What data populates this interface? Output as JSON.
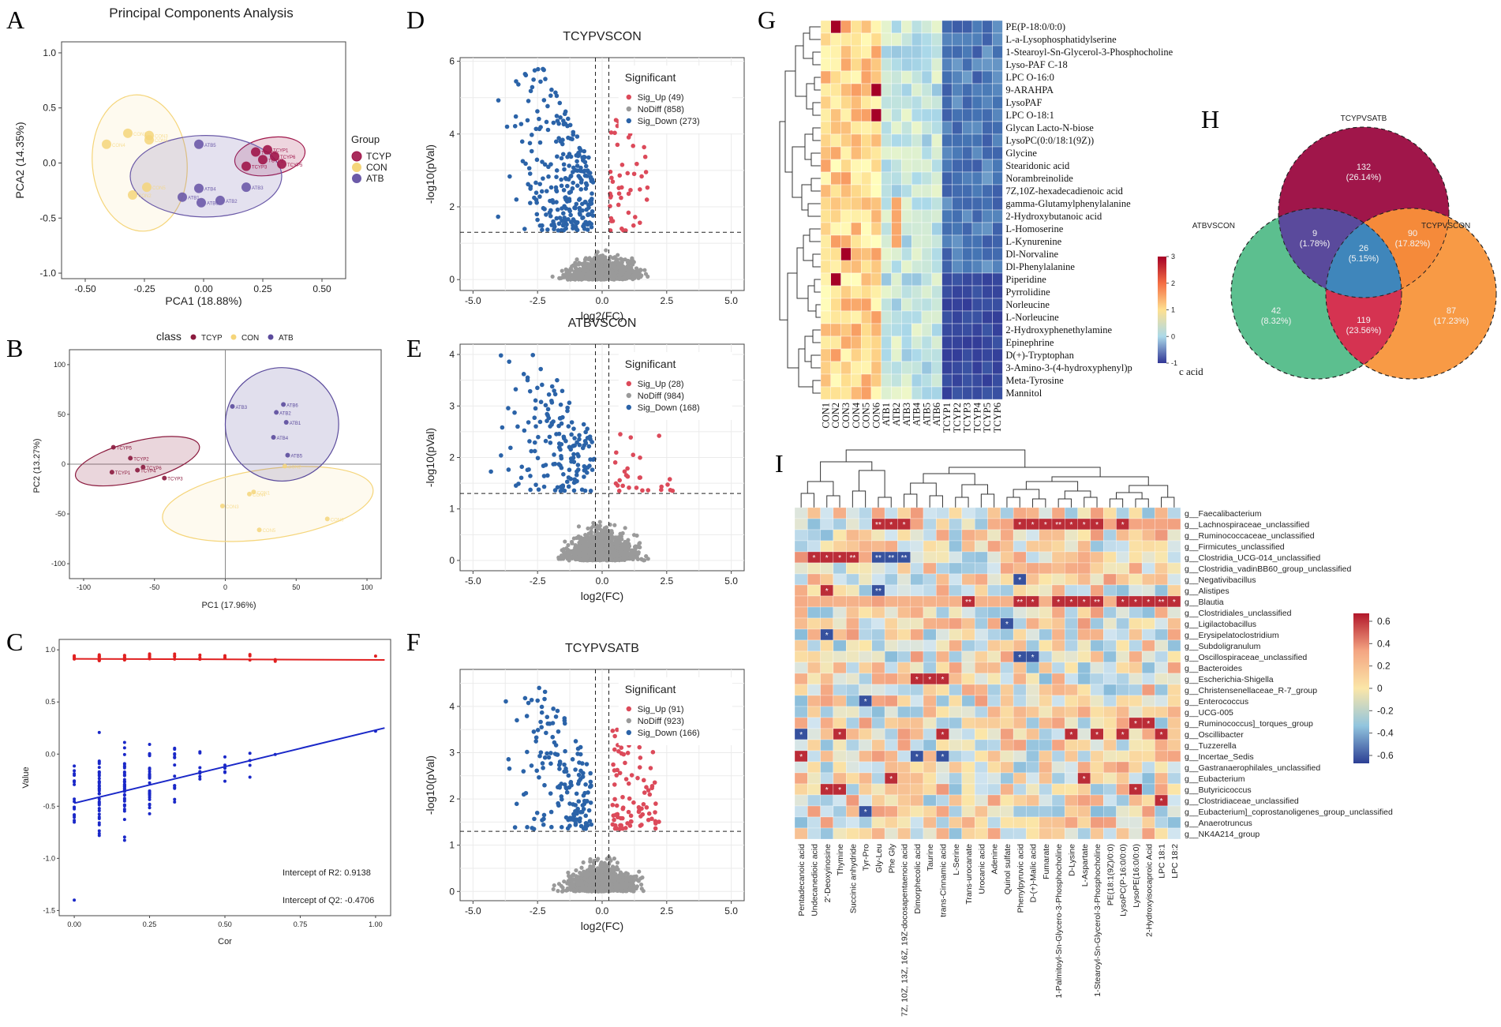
{
  "panels": {
    "A": "A",
    "B": "B",
    "C": "C",
    "D": "D",
    "E": "E",
    "F": "F",
    "G": "G",
    "H": "H",
    "I": "I"
  },
  "chart_data": [
    {
      "id": "A",
      "type": "scatter",
      "title": "Principal Components Analysis",
      "xlabel": "PCA1 (18.88%)",
      "ylabel": "PCA2 (14.35%)",
      "xlim": [
        -0.6,
        0.6
      ],
      "ylim": [
        -1.05,
        1.1
      ],
      "xticks": [
        "-0.50",
        "-0.25",
        "0.00",
        "0.25",
        "0.50"
      ],
      "yticks": [
        "-1.0",
        "-0.5",
        "0.0",
        "0.5",
        "1.0"
      ],
      "legend_title": "Group",
      "groups": [
        {
          "name": "TCYP",
          "color": "#a0164a",
          "ellipse": {
            "cx": 0.28,
            "cy": 0.06,
            "rx": 0.15,
            "ry": 0.17,
            "angle": -10
          },
          "points": [
            {
              "label": "TCYP1",
              "x": 0.27,
              "y": 0.12
            },
            {
              "label": "TCYP2",
              "x": 0.25,
              "y": 0.03
            },
            {
              "label": "TCYP3",
              "x": 0.18,
              "y": -0.03
            },
            {
              "label": "TCYP4",
              "x": 0.22,
              "y": 0.1
            },
            {
              "label": "TCYP5",
              "x": 0.33,
              "y": -0.01
            },
            {
              "label": "TCYP6",
              "x": 0.3,
              "y": 0.06
            }
          ]
        },
        {
          "name": "CON",
          "color": "#f5d57a",
          "ellipse": {
            "cx": -0.27,
            "cy": 0.0,
            "rx": 0.2,
            "ry": 0.62,
            "angle": -5
          },
          "points": [
            {
              "label": "CON1",
              "x": -0.32,
              "y": 0.27
            },
            {
              "label": "CON2",
              "x": -0.3,
              "y": -0.29
            },
            {
              "label": "CON3",
              "x": -0.23,
              "y": 0.25
            },
            {
              "label": "CON4",
              "x": -0.41,
              "y": 0.17
            },
            {
              "label": "CON5",
              "x": -0.24,
              "y": -0.22
            },
            {
              "label": "CON6",
              "x": -0.23,
              "y": 0.21
            }
          ]
        },
        {
          "name": "ATB",
          "color": "#6b5aa8",
          "ellipse": {
            "cx": 0.01,
            "cy": -0.12,
            "rx": 0.32,
            "ry": 0.37,
            "angle": 0
          },
          "points": [
            {
              "label": "ATB1",
              "x": -0.09,
              "y": -0.31
            },
            {
              "label": "ATB2",
              "x": 0.07,
              "y": -0.34
            },
            {
              "label": "ATB3",
              "x": 0.18,
              "y": -0.22
            },
            {
              "label": "ATB4",
              "x": -0.02,
              "y": -0.23
            },
            {
              "label": "ATB5",
              "x": -0.02,
              "y": 0.17
            },
            {
              "label": "ATB6",
              "x": -0.01,
              "y": -0.36
            }
          ]
        }
      ]
    },
    {
      "id": "B",
      "type": "scatter",
      "legend_title": "class",
      "legend": [
        "TCYP",
        "CON",
        "ATB"
      ],
      "xlabel": "PC1 (17.96%)",
      "ylabel": "PC2 (13.27%)",
      "xlim": [
        -110,
        110
      ],
      "ylim": [
        -115,
        115
      ],
      "xticks": [
        "-100",
        "-50",
        "0",
        "50",
        "100"
      ],
      "yticks": [
        "-100",
        "-50",
        "0",
        "50",
        "100"
      ],
      "groups": [
        {
          "name": "TCYP",
          "color": "#8b1a3e",
          "ellipse": {
            "cx": -62,
            "cy": 3,
            "rx": 45,
            "ry": 20,
            "angle": -14
          },
          "points": [
            {
              "label": "TCYP1",
              "x": -80,
              "y": -8
            },
            {
              "label": "TCYP2",
              "x": -67,
              "y": 6
            },
            {
              "label": "TCYP3",
              "x": -43,
              "y": -14
            },
            {
              "label": "TCYP4",
              "x": -62,
              "y": -6
            },
            {
              "label": "TCYP5",
              "x": -79,
              "y": 17
            },
            {
              "label": "TCYP6",
              "x": -58,
              "y": -3
            }
          ]
        },
        {
          "name": "CON",
          "color": "#f5d57a",
          "ellipse": {
            "cx": 30,
            "cy": -40,
            "rx": 75,
            "ry": 35,
            "angle": -8
          },
          "points": [
            {
              "label": "CON1",
              "x": 20,
              "y": -28
            },
            {
              "label": "CON2",
              "x": 42,
              "y": -2
            },
            {
              "label": "CON3",
              "x": -2,
              "y": -42
            },
            {
              "label": "CON4",
              "x": 17,
              "y": -30
            },
            {
              "label": "CON5",
              "x": 24,
              "y": -66
            },
            {
              "label": "CON6",
              "x": 72,
              "y": -55
            }
          ]
        },
        {
          "name": "ATB",
          "color": "#5b4b9c",
          "ellipse": {
            "cx": 40,
            "cy": 40,
            "rx": 40,
            "ry": 57,
            "angle": 30
          },
          "points": [
            {
              "label": "ATB1",
              "x": 43,
              "y": 42
            },
            {
              "label": "ATB2",
              "x": 36,
              "y": 52
            },
            {
              "label": "ATB3",
              "x": 5,
              "y": 58
            },
            {
              "label": "ATB4",
              "x": 34,
              "y": 27
            },
            {
              "label": "ATB5",
              "x": 44,
              "y": 9
            },
            {
              "label": "ATB6",
              "x": 41,
              "y": 60
            }
          ]
        }
      ]
    },
    {
      "id": "C",
      "type": "scatter",
      "xlabel": "Cor",
      "ylabel": "Value",
      "xlim": [
        -0.05,
        1.05
      ],
      "ylim": [
        -1.55,
        1.1
      ],
      "xticks": [
        "0.00",
        "0.25",
        "0.50",
        "0.75",
        "1.00"
      ],
      "yticks": [
        "-1.5",
        "-1.0",
        "-0.5",
        "0.0",
        "0.5",
        "1.0"
      ],
      "r2_line": {
        "color": "#e02020",
        "intercept": 0.9138,
        "slope": -0.01
      },
      "q2_line": {
        "color": "#1a28c8",
        "intercept": -0.4706,
        "slope": 0.7
      },
      "annotations": [
        "Intercept of R2: 0.9138",
        "Intercept of Q2: -0.4706"
      ],
      "x_columns": [
        0.0,
        0.083,
        0.167,
        0.25,
        0.333,
        0.417,
        0.5,
        0.583,
        0.667,
        1.0
      ]
    },
    {
      "id": "D",
      "type": "scatter",
      "title": "TCYPVSCON",
      "xlabel": "log2(FC)",
      "ylabel": "-log10(pVal)",
      "xlim": [
        -5.5,
        5.5
      ],
      "ylim": [
        -0.3,
        6.1
      ],
      "xticks": [
        "-5.0",
        "-2.5",
        "0.0",
        "2.5",
        "5.0"
      ],
      "xtick_values": [
        -5,
        -2.5,
        0,
        2.5,
        5
      ],
      "yticks": [
        "0",
        "2",
        "4",
        "6"
      ],
      "ytick_values": [
        0,
        2,
        4,
        6
      ],
      "legend_title": "Significant",
      "legend": [
        "Sig_Up (49)",
        "NoDiff (858)",
        "Sig_Down (273)"
      ],
      "counts": {
        "up": 49,
        "nodiff": 858,
        "down": 273
      },
      "down_extent": {
        "xmin": -4.2,
        "xmax": -0.3,
        "ymax": 5.8
      },
      "up_extent": {
        "xmin": 0.3,
        "xmax": 1.8,
        "ymax": 4.4
      },
      "threshold_y": 1.3,
      "threshold_x": [
        -0.26,
        0.26
      ]
    },
    {
      "id": "E",
      "type": "scatter",
      "title": "ATBVSCON",
      "xlabel": "log2(FC)",
      "ylabel": "-log10(pVal)",
      "xlim": [
        -5.5,
        5.5
      ],
      "ylim": [
        -0.2,
        4.2
      ],
      "xticks": [
        "-5.0",
        "-2.5",
        "0.0",
        "2.5",
        "5.0"
      ],
      "xtick_values": [
        -5,
        -2.5,
        0,
        2.5,
        5
      ],
      "yticks": [
        "0",
        "1",
        "2",
        "3",
        "4"
      ],
      "ytick_values": [
        0,
        1,
        2,
        3,
        4
      ],
      "legend_title": "Significant",
      "legend": [
        "Sig_Up (28)",
        "NoDiff (984)",
        "Sig_Down (168)"
      ],
      "counts": {
        "up": 28,
        "nodiff": 984,
        "down": 168
      },
      "down_extent": {
        "xmin": -4.5,
        "xmax": -0.3,
        "ymax": 4.0
      },
      "up_extent": {
        "xmin": 0.5,
        "xmax": 2.8,
        "ymax": 2.5
      },
      "threshold_y": 1.3,
      "threshold_x": [
        -0.26,
        0.26
      ]
    },
    {
      "id": "F",
      "type": "scatter",
      "title": "TCYPVSATB",
      "xlabel": "log2(FC)",
      "ylabel": "-log10(pVal)",
      "xlim": [
        -5.5,
        5.5
      ],
      "ylim": [
        -0.2,
        4.8
      ],
      "xticks": [
        "-5.0",
        "-2.5",
        "0.0",
        "2.5",
        "5.0"
      ],
      "xtick_values": [
        -5,
        -2.5,
        0,
        2.5,
        5
      ],
      "yticks": [
        "0",
        "1",
        "2",
        "3",
        "4"
      ],
      "ytick_values": [
        0,
        1,
        2,
        3,
        4
      ],
      "legend_title": "Significant",
      "legend": [
        "Sig_Up (91)",
        "NoDiff (923)",
        "Sig_Down (166)"
      ],
      "counts": {
        "up": 91,
        "nodiff": 923,
        "down": 166
      },
      "down_extent": {
        "xmin": -4.0,
        "xmax": -0.4,
        "ymax": 4.6
      },
      "up_extent": {
        "xmin": 0.4,
        "xmax": 2.2,
        "ymax": 3.5
      },
      "threshold_y": 1.3,
      "threshold_x": [
        -0.26,
        0.26
      ]
    },
    {
      "id": "G",
      "type": "heatmap",
      "columns": [
        "CON1",
        "CON2",
        "CON3",
        "CON4",
        "CON5",
        "CON6",
        "ATB1",
        "ATB2",
        "ATB3",
        "ATB4",
        "ATB5",
        "ATB6",
        "TCYP1",
        "TCYP2",
        "TCYP3",
        "TCYP4",
        "TCYP5",
        "TCYP6"
      ],
      "rows": [
        "PE(P-18:0/0:0)",
        "L-a-Lysophosphatidylserine",
        "1-Stearoyl-Sn-Glycerol-3-Phosphocholine",
        "Lyso-PAF C-18",
        "LPC O-16:0",
        "9-ARAHPA",
        "LysoPAF",
        "LPC O-18:1",
        "Glycan Lacto-N-biose",
        "LysoPC(0:0/18:1(9Z))",
        "Glycine",
        "Stearidonic acid",
        "Norambreinolide",
        "7Z,10Z-hexadecadienoic acid",
        "gamma-Glutamylphenylalanine",
        "2-Hydroxybutanoic acid",
        "L-Homoserine",
        "L-Kynurenine",
        "Dl-Norvaline",
        "Dl-Phenylalanine",
        "Piperidine",
        "Pyrrolidine",
        "Norleucine",
        "L-Norleucine",
        "2-Hydroxyphenethylamine",
        "Epinephrine",
        "D(+)-Tryptophan",
        "3-Amino-3-(4-hydroxyphenyl)p",
        "Meta-Tyrosine",
        "Mannitol"
      ],
      "row_label_suffix": "c acid",
      "scale": {
        "min": -1,
        "max": 3,
        "ticks": [
          "3",
          "2",
          "1",
          "0",
          "-1"
        ]
      }
    },
    {
      "id": "H",
      "type": "venn",
      "sets": [
        "TCYPVSATB",
        "ATBVSCON",
        "TCYPVSCON"
      ],
      "colors": {
        "TCYPVSATB": "#a0164a",
        "ATBVSCON": "#5cbf8f",
        "TCYPVSCON": "#f89a45"
      },
      "regions": [
        {
          "sets": [
            "TCYPVSATB"
          ],
          "count": "132",
          "pct": "(26.14%)"
        },
        {
          "sets": [
            "ATBVSCON"
          ],
          "count": "42",
          "pct": "(8.32%)"
        },
        {
          "sets": [
            "TCYPVSCON"
          ],
          "count": "87",
          "pct": "(17.23%)"
        },
        {
          "sets": [
            "TCYPVSATB",
            "ATBVSCON"
          ],
          "count": "9",
          "pct": "(1.78%)"
        },
        {
          "sets": [
            "TCYPVSATB",
            "TCYPVSCON"
          ],
          "count": "90",
          "pct": "(17.82%)"
        },
        {
          "sets": [
            "ATBVSCON",
            "TCYPVSCON"
          ],
          "count": "119",
          "pct": "(23.56%)"
        },
        {
          "sets": [
            "TCYPVSATB",
            "ATBVSCON",
            "TCYPVSCON"
          ],
          "count": "26",
          "pct": "(5.15%)"
        }
      ]
    },
    {
      "id": "I",
      "type": "heatmap",
      "rows": [
        "g__Faecalibacterium",
        "g__Lachnospiraceae_unclassified",
        "g__Ruminococcaceae_unclassified",
        "g__Firmicutes_unclassified",
        "g__Clostridia_UCG-014_unclassified",
        "g__Clostridia_vadinBB60_group_unclassified",
        "g__Negativibacillus",
        "g__Alistipes",
        "g__Blautia",
        "g__Clostridiales_unclassified",
        "g__Ligilactobacillus",
        "g__Erysipelatoclostridium",
        "g__Subdoligranulum",
        "g__Oscillospiraceae_unclassified",
        "g__Bacteroides",
        "g__Escherichia-Shigella",
        "g__Christensenellaceae_R-7_group",
        "g__Enterococcus",
        "g__UCG-005",
        "g__Ruminococcus]_torques_group",
        "g__Oscillibacter",
        "g__Tuzzerella",
        "g__Incertae_Sedis",
        "g__Gastranaerophilales_unclassified",
        "g__Eubacterium",
        "g__Butyricicoccus",
        "g__Clostridiaceae_unclassified",
        "g__Eubacterium]_coprostanoligenes_group_unclassified",
        "g__Anaerotruncus",
        "g__NK4A214_group"
      ],
      "columns": [
        "Pentadecanoic acid",
        "Undecanedioic acid",
        "2'-Deoxyinosine",
        "Thymine",
        "Succinic anhydride",
        "Tyr-Pro",
        "Gly-Leu",
        "Phe Gly",
        "7Z, 10Z, 13Z, 16Z, 19Z-docosapentaenoic acid",
        "Dimorphecolic acid",
        "Taurine",
        "trans-Cinnamic acid",
        "L-Serine",
        "Trans-urocanate",
        "Urocanic acid",
        "Adenine",
        "Quinol sulfate",
        "Phenylpyruvic acid",
        "D-(+)-Malic acid",
        "Fumarate",
        "1-Palmitoyl-Sn-Glycero-3-Phosphocholine",
        "D-Lysine",
        "L-Aspartate",
        "1-Stearoyl-Sn-Glycerol-3-Phosphocholine",
        "PE(18:1(9Z)/0:0)",
        "LysoPC(P-16:0/0:0)",
        "LysoPE(16:0/0:0)",
        "2-Hydroxyisocaproic Acid",
        "LPC 18:1",
        "LPC 18:2"
      ],
      "scale": {
        "min": -0.6,
        "max": 0.6,
        "ticks": [
          "0.6",
          "0.4",
          "0.2",
          "0",
          "-0.2",
          "-0.4",
          "-0.6"
        ]
      }
    }
  ]
}
